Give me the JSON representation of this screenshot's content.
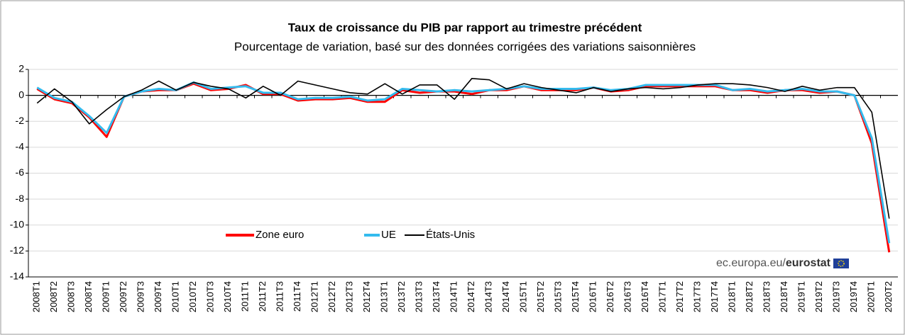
{
  "chart_data": {
    "type": "line",
    "title": "Taux de croissance du PIB par rapport au trimestre précédent",
    "subtitle": "Pourcentage de variation, basé sur des données corrigées des variations saisonnières",
    "source": {
      "site": "ec.europa.eu/",
      "brand": "eurostat"
    },
    "categories": [
      "2008T1",
      "2008T2",
      "2008T3",
      "2008T4",
      "2009T1",
      "2009T2",
      "2009T3",
      "2009T4",
      "2010T1",
      "2010T2",
      "2010T3",
      "2010T4",
      "2011T1",
      "2011T2",
      "2011T3",
      "2011T4",
      "2012T1",
      "2012T2",
      "2012T3",
      "2012T4",
      "2013T1",
      "2013T2",
      "2013T3",
      "2013T4",
      "2014T1",
      "2014T2",
      "2014T3",
      "2014T4",
      "2015T1",
      "2015T2",
      "2015T3",
      "2015T4",
      "2016T1",
      "2016T2",
      "2016T3",
      "2016T4",
      "2017T1",
      "2017T2",
      "2017T3",
      "2017T4",
      "2018T1",
      "2018T2",
      "2018T3",
      "2018T4",
      "2019T1",
      "2019T2",
      "2019T3",
      "2019T4",
      "2020T1",
      "2020T2"
    ],
    "series": [
      {
        "name": "Zone euro",
        "color": "#ff0000",
        "values": [
          0.5,
          -0.3,
          -0.6,
          -1.7,
          -3.2,
          -0.1,
          0.3,
          0.4,
          0.4,
          0.9,
          0.4,
          0.5,
          0.8,
          0.1,
          0.1,
          -0.4,
          -0.3,
          -0.3,
          -0.2,
          -0.5,
          -0.5,
          0.4,
          0.2,
          0.3,
          0.3,
          0.1,
          0.4,
          0.4,
          0.7,
          0.4,
          0.4,
          0.4,
          0.6,
          0.3,
          0.4,
          0.7,
          0.7,
          0.7,
          0.7,
          0.7,
          0.4,
          0.4,
          0.2,
          0.4,
          0.4,
          0.2,
          0.3,
          0.0,
          -3.7,
          -12.1
        ]
      },
      {
        "name": "UE",
        "color": "#33bbee",
        "values": [
          0.6,
          -0.2,
          -0.5,
          -1.6,
          -2.9,
          -0.1,
          0.3,
          0.5,
          0.4,
          1.0,
          0.5,
          0.6,
          0.7,
          0.2,
          0.2,
          -0.3,
          -0.2,
          -0.2,
          -0.1,
          -0.4,
          -0.3,
          0.5,
          0.4,
          0.3,
          0.4,
          0.3,
          0.4,
          0.5,
          0.7,
          0.5,
          0.5,
          0.5,
          0.6,
          0.4,
          0.5,
          0.8,
          0.8,
          0.8,
          0.8,
          0.8,
          0.4,
          0.5,
          0.3,
          0.4,
          0.5,
          0.3,
          0.3,
          0.0,
          -3.3,
          -11.4
        ]
      },
      {
        "name": "États-Unis",
        "color": "#000000",
        "values": [
          -0.6,
          0.5,
          -0.5,
          -2.2,
          -1.1,
          -0.1,
          0.4,
          1.1,
          0.4,
          1.0,
          0.7,
          0.5,
          -0.2,
          0.7,
          0.0,
          1.1,
          0.8,
          0.5,
          0.2,
          0.1,
          0.9,
          0.1,
          0.8,
          0.8,
          -0.3,
          1.3,
          1.2,
          0.5,
          0.9,
          0.6,
          0.4,
          0.2,
          0.6,
          0.3,
          0.5,
          0.6,
          0.5,
          0.6,
          0.8,
          0.9,
          0.9,
          0.8,
          0.6,
          0.3,
          0.7,
          0.4,
          0.6,
          0.6,
          -1.3,
          -9.5
        ]
      }
    ],
    "ylim": [
      -14,
      2
    ],
    "yticks": [
      2,
      0,
      -2,
      -4,
      -6,
      -8,
      -10,
      -12,
      -14
    ],
    "grid": true
  }
}
